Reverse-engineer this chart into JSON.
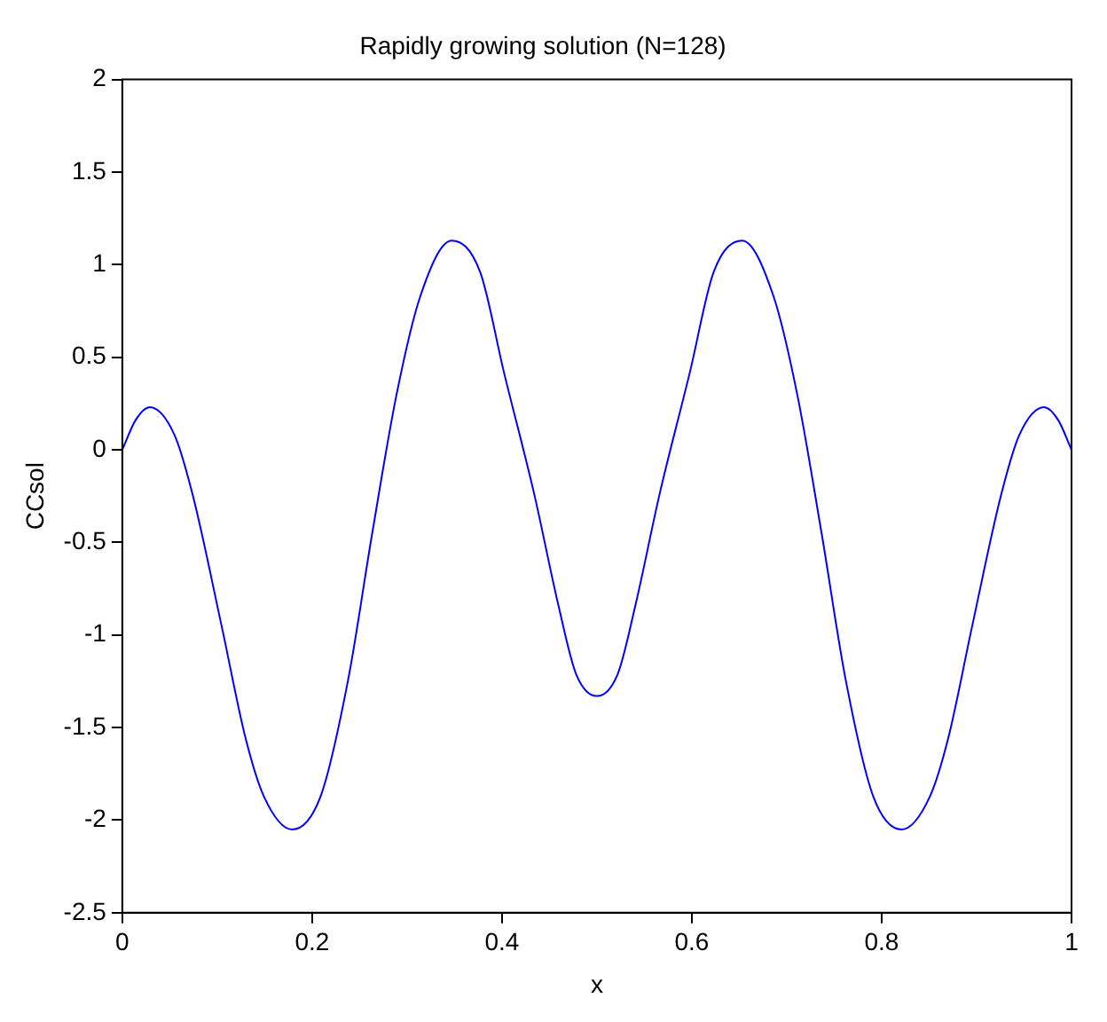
{
  "chart_data": {
    "type": "line",
    "title": "Rapidly growing solution (N=128)",
    "xlabel": "x",
    "ylabel": "CCsol",
    "xlim": [
      0,
      1
    ],
    "xticks": [
      0,
      0.2,
      0.4,
      0.6,
      0.8,
      1
    ],
    "ylim": [
      -2.5,
      2
    ],
    "yticks": [
      -2.5,
      -2,
      -1.5,
      -1,
      -0.5,
      0,
      0.5,
      1,
      1.5,
      2
    ],
    "grid": false,
    "legend": false,
    "marker": "none",
    "line_style": "solid",
    "series": [
      {
        "color": "#0000ff",
        "x": [
          0,
          0.014,
          0.029,
          0.055,
          0.074,
          0.105,
          0.13,
          0.149,
          0.179,
          0.209,
          0.238,
          0.263,
          0.289,
          0.314,
          0.347,
          0.377,
          0.402,
          0.434,
          0.459,
          0.478,
          0.5,
          0.522,
          0.541,
          0.566,
          0.598,
          0.623,
          0.653,
          0.686,
          0.711,
          0.737,
          0.762,
          0.791,
          0.821,
          0.851,
          0.87,
          0.895,
          0.926,
          0.945,
          0.971,
          0.986,
          1
        ],
        "values": [
          0,
          0.16,
          0.23,
          0.08,
          -0.24,
          -0.96,
          -1.56,
          -1.87,
          -2.05,
          -1.87,
          -1.24,
          -0.46,
          0.3,
          0.83,
          1.13,
          0.96,
          0.42,
          -0.24,
          -0.83,
          -1.21,
          -1.33,
          -1.21,
          -0.83,
          -0.24,
          0.42,
          0.96,
          1.13,
          0.83,
          0.3,
          -0.46,
          -1.24,
          -1.87,
          -2.05,
          -1.87,
          -1.56,
          -0.96,
          -0.24,
          0.08,
          0.23,
          0.16,
          0
        ]
      }
    ]
  }
}
